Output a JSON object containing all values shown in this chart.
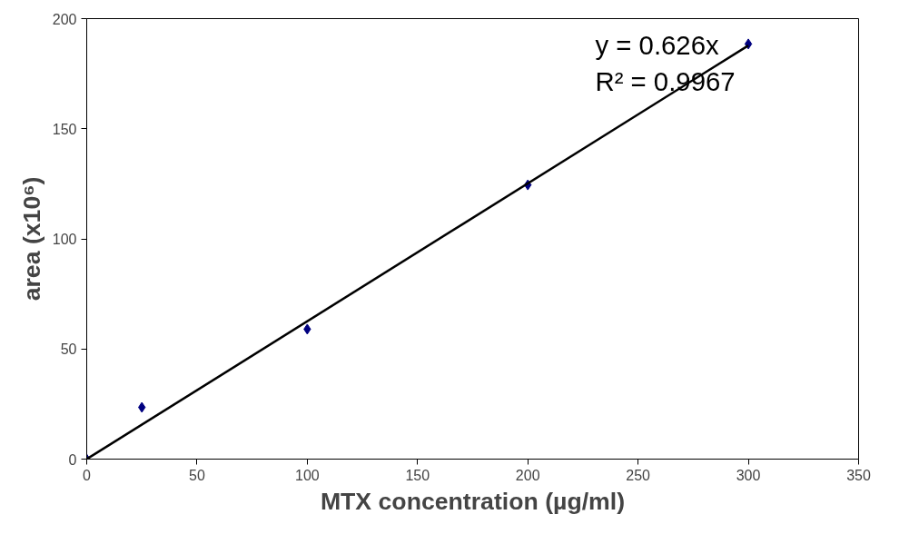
{
  "chart_data": {
    "type": "scatter",
    "xlabel": "MTX concentration (µg/ml)",
    "ylabel": "area (x10⁶)",
    "x": [
      0,
      25,
      100,
      200,
      300
    ],
    "series": [
      {
        "color": "#000080",
        "marker": "diamond",
        "values": [
          0,
          23.5,
          59,
          124.5,
          188.5
        ]
      },
      {
        "type": "line",
        "color": "#000000",
        "marker": "none",
        "x": [
          0,
          300
        ],
        "values": [
          0,
          187.8
        ]
      }
    ],
    "annotations": [
      "y = 0.626x",
      "R² = 0.9967"
    ],
    "xlim": [
      0,
      350
    ],
    "xticks": [
      0,
      50,
      100,
      150,
      200,
      250,
      300,
      350
    ],
    "ylim": [
      0,
      200
    ],
    "yticks": [
      0,
      50,
      100,
      150,
      200
    ],
    "grid": false
  }
}
